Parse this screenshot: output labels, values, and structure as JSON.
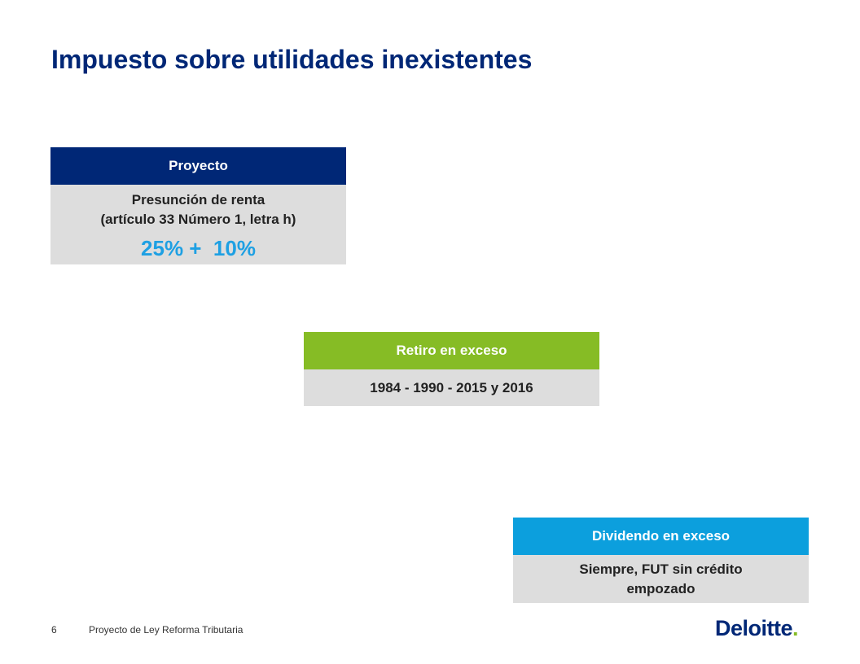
{
  "slide": {
    "title": "Impuesto sobre utilidades inexistentes"
  },
  "boxes": {
    "proyecto": {
      "header": "Proyecto",
      "line1": "Presunción de renta",
      "line2": "(artículo 33 Número 1, letra h)",
      "rate": "25% +  10%"
    },
    "retiro": {
      "header": "Retiro en exceso",
      "body": "1984 - 1990 - 2015 y 2016"
    },
    "dividendo": {
      "header": "Dividendo en exceso",
      "line1": "Siempre, FUT sin crédito",
      "line2": "empozado"
    }
  },
  "footer": {
    "page_number": "6",
    "text": "Proyecto de Ley Reforma Tributaria",
    "logo_word": "Deloitte",
    "logo_dot": "."
  },
  "colors": {
    "title": "#002776",
    "proyecto_header": "#002776",
    "retiro_header": "#86bc25",
    "dividendo_header": "#0c9fdd",
    "box_body": "#dddddd",
    "rate": "#1ea0e3"
  }
}
